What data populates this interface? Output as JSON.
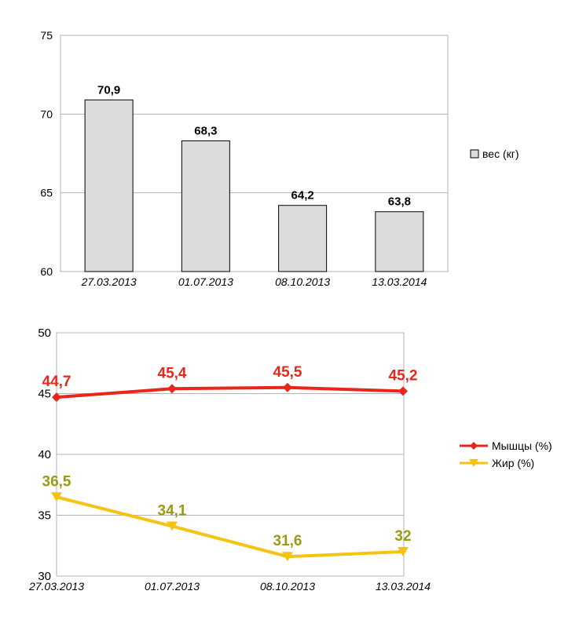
{
  "chart_data": [
    {
      "type": "bar",
      "categories": [
        "27.03.2013",
        "01.07.2013",
        "08.10.2013",
        "13.03.2014"
      ],
      "series": [
        {
          "name": "вес (кг)",
          "values": [
            70.9,
            68.3,
            64.2,
            63.8
          ],
          "color": "#dcdcdc"
        }
      ],
      "data_labels": [
        "70,9",
        "68,3",
        "64,2",
        "63,8"
      ],
      "yticks": [
        "60",
        "65",
        "70",
        "75"
      ],
      "ylim": [
        60,
        75
      ],
      "grid": true,
      "legend": "right"
    },
    {
      "type": "line",
      "categories": [
        "27.03.2013",
        "01.07.2013",
        "08.10.2013",
        "13.03.2014"
      ],
      "series": [
        {
          "name": "Мышцы (%)",
          "values": [
            44.7,
            45.4,
            45.5,
            45.2
          ],
          "labels": [
            "44,7",
            "45,4",
            "45,5",
            "45,2"
          ],
          "color": "#e8261a",
          "label_color": "#e8261a",
          "marker": "diamond"
        },
        {
          "name": "Жир (%)",
          "values": [
            36.5,
            34.1,
            31.6,
            32
          ],
          "labels": [
            "36,5",
            "34,1",
            "31,6",
            "32"
          ],
          "color": "#f5c411",
          "label_color": "#9a9a14",
          "marker": "triangle-down"
        }
      ],
      "yticks": [
        "30",
        "35",
        "40",
        "45",
        "50"
      ],
      "ylim": [
        30,
        50
      ],
      "grid": true,
      "legend": "right"
    }
  ]
}
